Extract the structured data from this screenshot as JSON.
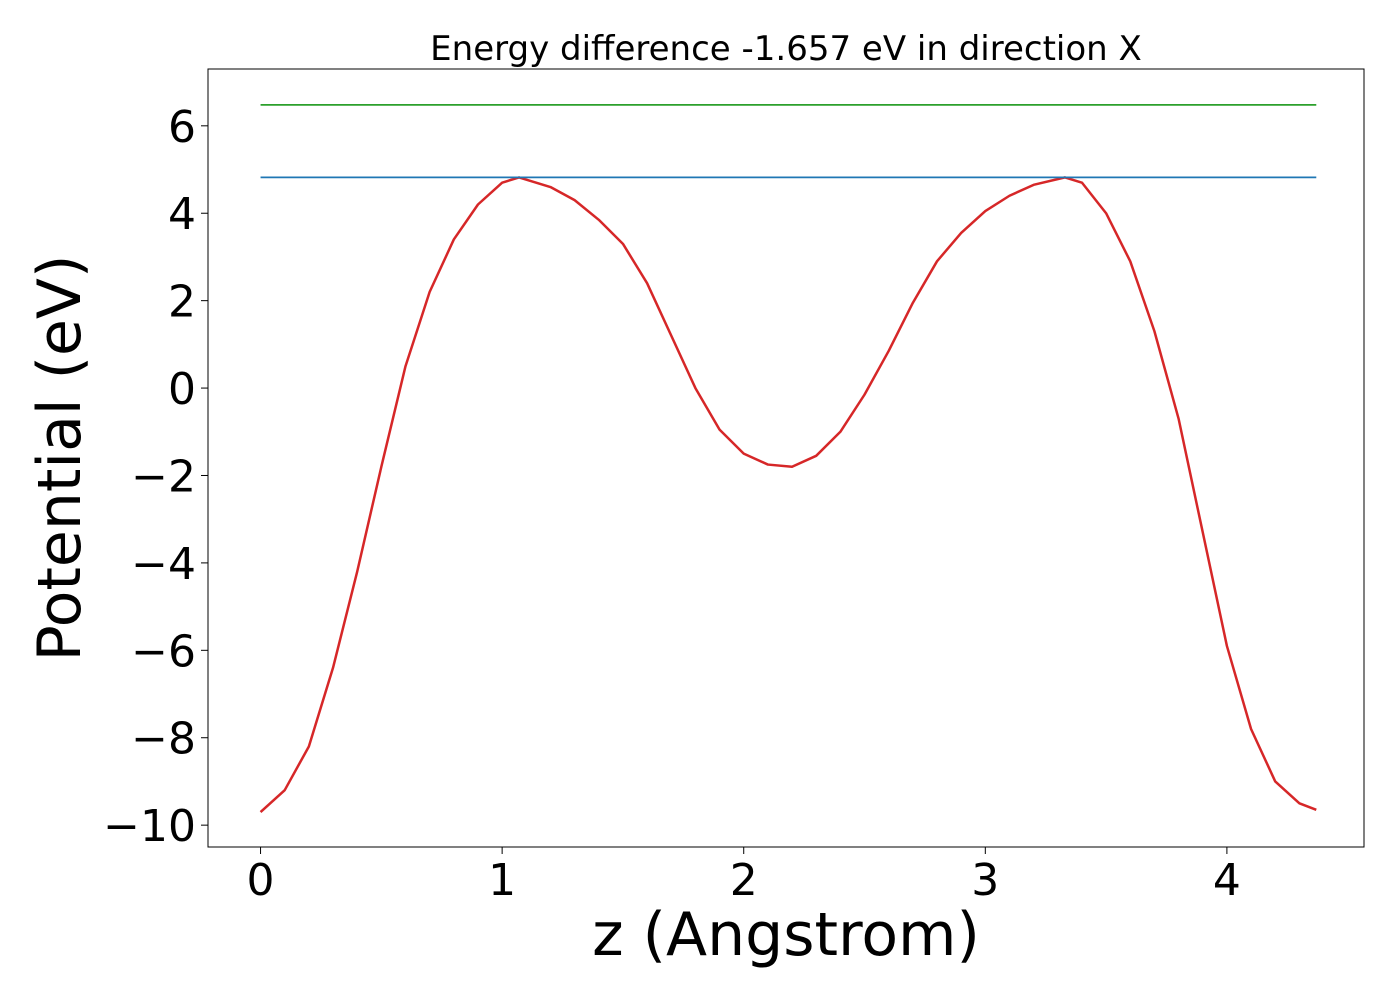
{
  "chart_data": {
    "type": "line",
    "title": "Energy difference -1.657 eV in direction X",
    "xlabel": "z (Angstrom)",
    "ylabel": "Potential (eV)",
    "xlim": [
      -0.2175,
      4.5675
    ],
    "ylim": [
      -10.5,
      7.3
    ],
    "x_ticks": [
      0,
      1,
      2,
      3,
      4
    ],
    "x_tick_labels": [
      "0",
      "1",
      "2",
      "3",
      "4"
    ],
    "y_ticks": [
      -10,
      -8,
      -6,
      -4,
      -2,
      0,
      2,
      4,
      6
    ],
    "y_tick_labels": [
      "−10",
      "−8",
      "−6",
      "−4",
      "−2",
      "0",
      "2",
      "4",
      "6"
    ],
    "grid": false,
    "series": [
      {
        "color": "#d62728",
        "x": [
          0.0,
          0.1,
          0.2,
          0.3,
          0.4,
          0.5,
          0.6,
          0.7,
          0.8,
          0.9,
          1.0,
          1.07,
          1.2,
          1.3,
          1.4,
          1.5,
          1.6,
          1.7,
          1.8,
          1.9,
          2.0,
          2.1,
          2.2,
          2.3,
          2.4,
          2.5,
          2.6,
          2.7,
          2.8,
          2.9,
          3.0,
          3.1,
          3.2,
          3.33,
          3.4,
          3.5,
          3.6,
          3.7,
          3.8,
          3.9,
          4.0,
          4.1,
          4.2,
          4.3,
          4.37
        ],
        "y": [
          -9.7,
          -9.2,
          -8.2,
          -6.4,
          -4.2,
          -1.8,
          0.5,
          2.2,
          3.4,
          4.2,
          4.7,
          4.82,
          4.6,
          4.3,
          3.85,
          3.3,
          2.4,
          1.2,
          0.0,
          -0.95,
          -1.5,
          -1.75,
          -1.8,
          -1.55,
          -1.0,
          -0.15,
          0.85,
          1.95,
          2.9,
          3.55,
          4.05,
          4.4,
          4.65,
          4.82,
          4.7,
          4.0,
          2.9,
          1.3,
          -0.7,
          -3.3,
          -5.9,
          -7.8,
          -9.0,
          -9.5,
          -9.65
        ]
      },
      {
        "color": "#1f77b4",
        "x": [
          0.0,
          4.37
        ],
        "y": [
          4.82,
          4.82
        ]
      },
      {
        "color": "#2ca02c",
        "x": [
          0.0,
          4.37
        ],
        "y": [
          6.48,
          6.48
        ]
      }
    ]
  }
}
